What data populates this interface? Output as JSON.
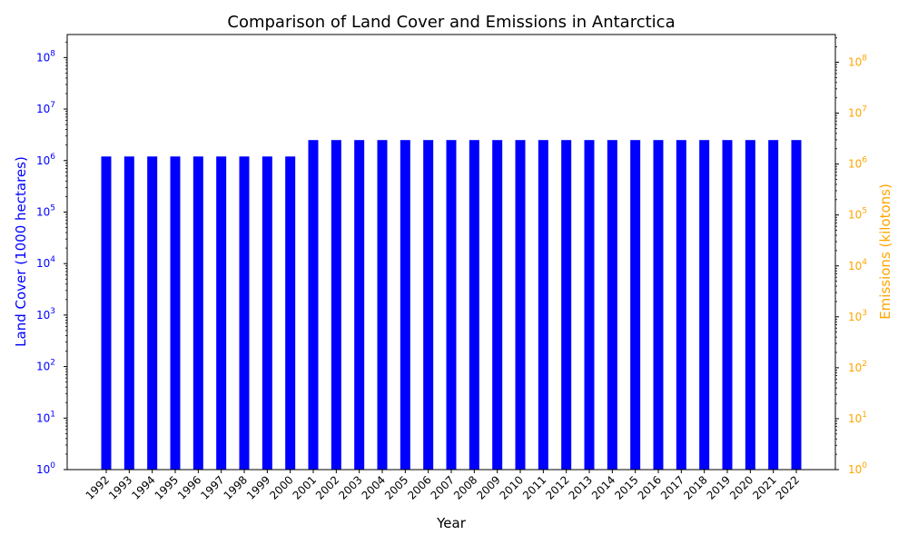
{
  "chart_data": {
    "type": "bar",
    "title": "Comparison of Land Cover and Emissions in Antarctica",
    "xlabel": "Year",
    "ylabel": "Land Cover (1000 hectares)",
    "y2label": "Emissions (kilotons)",
    "yscale": "log",
    "ylim": [
      1,
      280000000
    ],
    "y2lim": [
      1,
      350000000
    ],
    "grid": false,
    "categories": [
      "1992",
      "1993",
      "1994",
      "1995",
      "1996",
      "1997",
      "1998",
      "1999",
      "2000",
      "2001",
      "2002",
      "2003",
      "2004",
      "2005",
      "2006",
      "2007",
      "2008",
      "2009",
      "2010",
      "2011",
      "2012",
      "2013",
      "2014",
      "2015",
      "2016",
      "2017",
      "2018",
      "2019",
      "2020",
      "2021",
      "2022"
    ],
    "series": [
      {
        "axis": "left",
        "color": "#0000ff",
        "values": [
          1200000,
          1200000,
          1200000,
          1200000,
          1200000,
          1200000,
          1200000,
          1200000,
          1200000,
          2500000,
          2500000,
          2500000,
          2500000,
          2500000,
          2500000,
          2500000,
          2500000,
          2500000,
          2500000,
          2500000,
          2500000,
          2500000,
          2500000,
          2500000,
          2500000,
          2500000,
          2500000,
          2500000,
          2500000,
          2500000,
          2500000
        ]
      }
    ],
    "left_ticks": [
      {
        "value": 1,
        "base": "10",
        "exp": "0"
      },
      {
        "value": 10,
        "base": "10",
        "exp": "1"
      },
      {
        "value": 100,
        "base": "10",
        "exp": "2"
      },
      {
        "value": 1000,
        "base": "10",
        "exp": "3"
      },
      {
        "value": 10000,
        "base": "10",
        "exp": "4"
      },
      {
        "value": 100000,
        "base": "10",
        "exp": "5"
      },
      {
        "value": 1000000,
        "base": "10",
        "exp": "6"
      },
      {
        "value": 10000000,
        "base": "10",
        "exp": "7"
      },
      {
        "value": 100000000,
        "base": "10",
        "exp": "8"
      }
    ],
    "right_ticks": [
      {
        "value": 1,
        "base": "10",
        "exp": "0"
      },
      {
        "value": 10,
        "base": "10",
        "exp": "1"
      },
      {
        "value": 100,
        "base": "10",
        "exp": "2"
      },
      {
        "value": 1000,
        "base": "10",
        "exp": "3"
      },
      {
        "value": 10000,
        "base": "10",
        "exp": "4"
      },
      {
        "value": 100000,
        "base": "10",
        "exp": "5"
      },
      {
        "value": 1000000,
        "base": "10",
        "exp": "6"
      },
      {
        "value": 10000000,
        "base": "10",
        "exp": "7"
      },
      {
        "value": 100000000,
        "base": "10",
        "exp": "8"
      }
    ],
    "colors": {
      "left_axis": "#0000ff",
      "right_axis": "#ffa500",
      "axis_line": "#000000",
      "text": "#000000"
    }
  }
}
